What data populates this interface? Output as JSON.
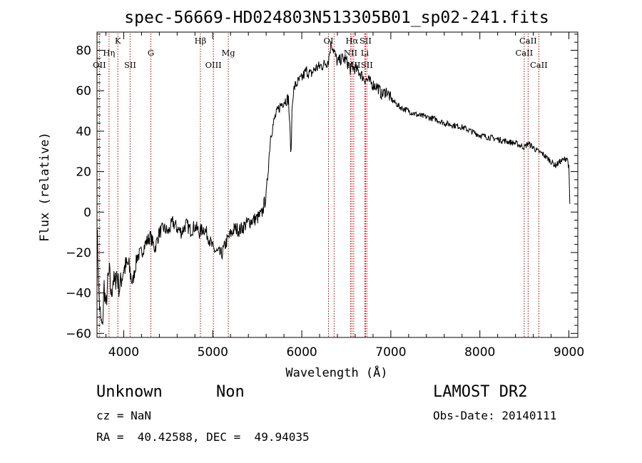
{
  "chart_data": {
    "type": "line",
    "title": "spec-56669-HD024803N513305B01_sp02-241.fits",
    "xlabel": "Wavelength (Å)",
    "ylabel": "Flux (relative)",
    "xlim": [
      3700,
      9100
    ],
    "ylim": [
      -62,
      89
    ],
    "x_ticks": [
      4000,
      5000,
      6000,
      7000,
      8000,
      9000
    ],
    "y_ticks": [
      -60,
      -40,
      -20,
      0,
      20,
      40,
      60,
      80
    ],
    "grid": false,
    "line_color": "#000000",
    "marker_color": "#b00000",
    "series": [
      {
        "x": [
          3700,
          3720,
          3740,
          3760,
          3780,
          3800,
          3820,
          3840,
          3860,
          3880,
          3900,
          3920,
          3950,
          3980,
          4000,
          4050,
          4100,
          4150,
          4200,
          4250,
          4300,
          4350,
          4400,
          4450,
          4500,
          4550,
          4600,
          4650,
          4700,
          4750,
          4800,
          4850,
          4900,
          4950,
          5000,
          5050,
          5100,
          5150,
          5200,
          5250,
          5300,
          5350,
          5400,
          5450,
          5500,
          5550,
          5600,
          5620,
          5650,
          5700,
          5750,
          5800,
          5850,
          5880,
          5890,
          5900,
          5920,
          5950,
          6000,
          6050,
          6100,
          6150,
          6200,
          6250,
          6300,
          6330,
          6400,
          6450,
          6500,
          6550,
          6562,
          6600,
          6650,
          6700,
          6750,
          6800,
          6850,
          6900,
          6950,
          7000,
          7050,
          7100,
          7150,
          7200,
          7300,
          7400,
          7500,
          7600,
          7700,
          7800,
          7900,
          8000,
          8100,
          8200,
          8300,
          8400,
          8450,
          8500,
          8540,
          8600,
          8650,
          8700,
          8750,
          8800,
          8850,
          8900,
          8950,
          8980,
          9000,
          9010
        ],
        "y": [
          -5,
          -40,
          -53,
          -58,
          -36,
          -48,
          -35,
          -30,
          -42,
          -33,
          -36,
          -30,
          -38,
          -32,
          -28,
          -26,
          -35,
          -22,
          -20,
          -15,
          -12,
          -18,
          -10,
          -8,
          -10,
          -5,
          -8,
          -10,
          -6,
          -9,
          -7,
          -10,
          -8,
          -12,
          -18,
          -20,
          -21,
          -15,
          -11,
          -8,
          -9,
          -7,
          -5,
          -4,
          -3,
          -1,
          8,
          20,
          38,
          47,
          52,
          55,
          56,
          28,
          50,
          58,
          62,
          64,
          66,
          70,
          68,
          71,
          72,
          73,
          75,
          84,
          74,
          76,
          75,
          70,
          72,
          71,
          69,
          66,
          65,
          63,
          62,
          58,
          60,
          56,
          54,
          52,
          51,
          50,
          48,
          47,
          46,
          44,
          43,
          42,
          40,
          38,
          37,
          36,
          35,
          34,
          33,
          32,
          34,
          32,
          30,
          29,
          27,
          25,
          23,
          25,
          26,
          27,
          22,
          4
        ]
      }
    ]
  },
  "line_markers": [
    {
      "label": "OII",
      "wavelength": 3727,
      "label_row": 2
    },
    {
      "label": "Hη",
      "wavelength": 3835,
      "label_row": 1
    },
    {
      "label": "K",
      "wavelength": 3934,
      "label_row": 0
    },
    {
      "label": "SII",
      "wavelength": 4072,
      "label_row": 2
    },
    {
      "label": "G",
      "wavelength": 4305,
      "label_row": 1
    },
    {
      "label": "Hβ",
      "wavelength": 4861,
      "label_row": 0
    },
    {
      "label": "OIII",
      "wavelength": 5007,
      "label_row": 2
    },
    {
      "label": "Mg",
      "wavelength": 5175,
      "label_row": 1
    },
    {
      "label": "OI",
      "wavelength": 6300,
      "label_row": 0
    },
    {
      "label": "",
      "wavelength": 6363,
      "label_row": 0
    },
    {
      "label": "Hα",
      "wavelength": 6563,
      "label_row": 0
    },
    {
      "label": "NII",
      "wavelength": 6548,
      "label_row": 1
    },
    {
      "label": "NII",
      "wavelength": 6583,
      "label_row": 2
    },
    {
      "label": "SII",
      "wavelength": 6716,
      "label_row": 0
    },
    {
      "label": "Li",
      "wavelength": 6708,
      "label_row": 1
    },
    {
      "label": "SII",
      "wavelength": 6731,
      "label_row": 2
    },
    {
      "label": "CaII",
      "wavelength": 8542,
      "label_row": 0
    },
    {
      "label": "CaII",
      "wavelength": 8498,
      "label_row": 1
    },
    {
      "label": "CaII",
      "wavelength": 8662,
      "label_row": 2
    }
  ],
  "info": {
    "object_class": "Unknown",
    "subclass": "Non",
    "survey": "LAMOST DR2",
    "redshift": "cz = NaN",
    "obs_date": "Obs-Date: 20140111",
    "coords": "RA =  40.42588, DEC =  49.94035"
  }
}
